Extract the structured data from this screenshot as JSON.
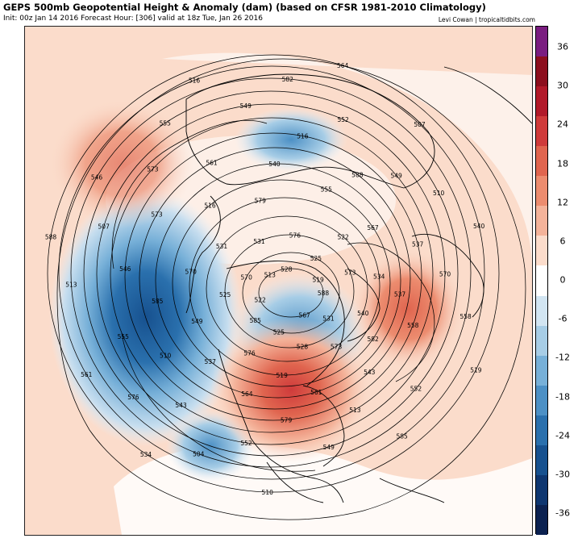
{
  "header": {
    "title": "GEPS 500mb Geopotential Height & Anomaly (dam) (based on CFSR 1981-2010 Climatology)",
    "subtitle": "Init: 00z Jan 14 2016   Forecast Hour: [306]   valid at 18z Tue, Jan 26 2016",
    "credit": "Levi Cowan | tropicaltidbits.com"
  },
  "colorbar": {
    "ticks": [
      "36",
      "30",
      "24",
      "18",
      "12",
      "6",
      "0",
      "-6",
      "-12",
      "-18",
      "-24",
      "-30",
      "-36"
    ],
    "colors": [
      "#7a1d80",
      "#8c0f1e",
      "#b11a2a",
      "#cf3b3b",
      "#e0654f",
      "#ec8c6f",
      "#f4b39a",
      "#fbdccb",
      "#ffffff",
      "#d2e5f2",
      "#a7cde6",
      "#77b0d8",
      "#4c90c5",
      "#2a70ad",
      "#17518f",
      "#0e3670",
      "#0b2150"
    ]
  },
  "map": {
    "contour_labels": [
      {
        "text": "588",
        "color": "#000000"
      },
      {
        "text": "585",
        "color": "#000000"
      },
      {
        "text": "582",
        "color": "#000000"
      },
      {
        "text": "579",
        "color": "#000000"
      },
      {
        "text": "576",
        "color": "#000000"
      },
      {
        "text": "573",
        "color": "#000000"
      },
      {
        "text": "570",
        "color": "#000000"
      },
      {
        "text": "567",
        "color": "#000000"
      },
      {
        "text": "564",
        "color": "#000000"
      },
      {
        "text": "561",
        "color": "#000000"
      },
      {
        "text": "558",
        "color": "#000000"
      },
      {
        "text": "555",
        "color": "#000000"
      },
      {
        "text": "552",
        "color": "#000000"
      },
      {
        "text": "549",
        "color": "#000000"
      },
      {
        "text": "546",
        "color": "#000000"
      },
      {
        "text": "543",
        "color": "#000000"
      },
      {
        "text": "540",
        "color": "#000000"
      },
      {
        "text": "537",
        "color": "#000000"
      },
      {
        "text": "534",
        "color": "#000000"
      },
      {
        "text": "531",
        "color": "#000000"
      },
      {
        "text": "528",
        "color": "#000000"
      },
      {
        "text": "525",
        "color": "#000000"
      },
      {
        "text": "522",
        "color": "#000000"
      },
      {
        "text": "519",
        "color": "#000000"
      },
      {
        "text": "516",
        "color": "#000000"
      },
      {
        "text": "513",
        "color": "#000000"
      },
      {
        "text": "510",
        "color": "#000000"
      },
      {
        "text": "507",
        "color": "#000000"
      },
      {
        "text": "504",
        "color": "#000000"
      }
    ],
    "placed_labels": [
      "588",
      "585",
      "576",
      "573",
      "570",
      "567",
      "564",
      "561",
      "558",
      "555",
      "552",
      "549",
      "546",
      "540",
      "534",
      "528",
      "531",
      "525",
      "522",
      "519",
      "516",
      "537",
      "510",
      "516",
      "513",
      "507",
      "510",
      "504",
      "516",
      "519",
      "522",
      "525",
      "528",
      "531",
      "534",
      "537",
      "540",
      "543",
      "546",
      "549",
      "552",
      "555",
      "558",
      "561",
      "564",
      "567",
      "570",
      "573",
      "576",
      "579",
      "582",
      "585",
      "588",
      "579",
      "573",
      "570",
      "576",
      "582",
      "585",
      "588",
      "519",
      "525",
      "531",
      "540",
      "549",
      "555",
      "561",
      "573",
      "537",
      "543",
      "549",
      "552",
      "513",
      "507",
      "510",
      "513"
    ]
  }
}
